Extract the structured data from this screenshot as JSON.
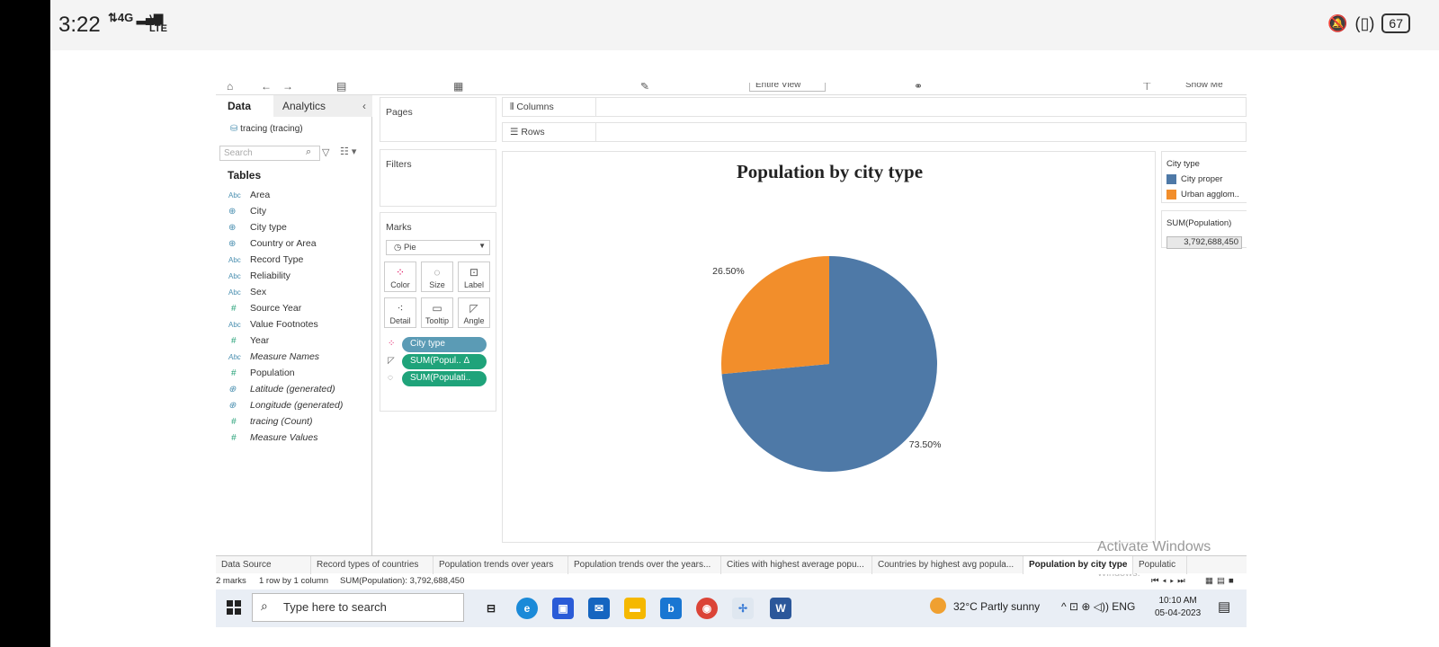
{
  "status_bar": {
    "time": "3:22",
    "signal": "4G",
    "network": "Vo LTE",
    "battery": "67"
  },
  "tableau": {
    "toolbar": {
      "view_select": "Entire View",
      "show_me": "Show Me"
    },
    "data_pane": {
      "tab_data": "Data",
      "tab_analytics": "Analytics",
      "datasource": "tracing (tracing)",
      "search_placeholder": "Search",
      "tables_heading": "Tables",
      "fields": [
        {
          "type": "Abc",
          "kind": "str",
          "name": "Area",
          "italic": false
        },
        {
          "type": "⊕",
          "kind": "geo",
          "name": "City",
          "italic": false
        },
        {
          "type": "⊕",
          "kind": "geo",
          "name": "City type",
          "italic": false
        },
        {
          "type": "⊕",
          "kind": "geo",
          "name": "Country or Area",
          "italic": false
        },
        {
          "type": "Abc",
          "kind": "str",
          "name": "Record Type",
          "italic": false
        },
        {
          "type": "Abc",
          "kind": "str",
          "name": "Reliability",
          "italic": false
        },
        {
          "type": "Abc",
          "kind": "str",
          "name": "Sex",
          "italic": false
        },
        {
          "type": "#",
          "kind": "num",
          "name": "Source Year",
          "italic": false
        },
        {
          "type": "Abc",
          "kind": "str",
          "name": "Value Footnotes",
          "italic": false
        },
        {
          "type": "#",
          "kind": "num",
          "name": "Year",
          "italic": false
        },
        {
          "type": "Abc",
          "kind": "str",
          "name": "Measure Names",
          "italic": true
        },
        {
          "type": "#",
          "kind": "num",
          "name": "Population",
          "italic": false
        },
        {
          "type": "⊕",
          "kind": "geo",
          "name": "Latitude (generated)",
          "italic": true
        },
        {
          "type": "⊕",
          "kind": "geo",
          "name": "Longitude (generated)",
          "italic": true
        },
        {
          "type": "#",
          "kind": "num",
          "name": "tracing (Count)",
          "italic": true
        },
        {
          "type": "#",
          "kind": "num",
          "name": "Measure Values",
          "italic": true
        }
      ]
    },
    "pages_title": "Pages",
    "filters_title": "Filters",
    "marks": {
      "title": "Marks",
      "mark_type": "Pie",
      "buttons": [
        "Color",
        "Size",
        "Label",
        "Detail",
        "Tooltip",
        "Angle"
      ],
      "pills": [
        {
          "label": "City type",
          "color": "#5b9bb5"
        },
        {
          "label": "SUM(Popul..  Δ",
          "color": "#1fa37a"
        },
        {
          "label": "SUM(Populati..",
          "color": "#1fa37a"
        }
      ]
    },
    "shelves": {
      "columns": "Columns",
      "rows": "Rows"
    },
    "legend": {
      "title": "City type",
      "items": [
        {
          "label": "City proper",
          "color": "#4e79a7"
        },
        {
          "label": "Urban agglom..",
          "color": "#f28e2b"
        }
      ]
    },
    "sum_card": {
      "title": "SUM(Population)",
      "value": "3,792,688,450"
    },
    "watermark": {
      "line1": "Activate Windows",
      "line2": "Go to Settings to activate Windows."
    },
    "sheet_tabs": [
      {
        "label": "Data Source",
        "active": false
      },
      {
        "label": "Record types of countries",
        "active": false
      },
      {
        "label": "Population trends over years",
        "active": false
      },
      {
        "label": "Population trends over the years...",
        "active": false
      },
      {
        "label": "Cities with highest average popu...",
        "active": false
      },
      {
        "label": "Countries by highest avg popula...",
        "active": false
      },
      {
        "label": "Population by city type",
        "active": true
      },
      {
        "label": "Populatic",
        "active": false
      }
    ],
    "status_line": {
      "marks": "2 marks",
      "layout": "1 row by 1 column",
      "sum": "SUM(Population): 3,792,688,450"
    }
  },
  "chart_data": {
    "type": "pie",
    "title": "Population by city type",
    "categories": [
      "City proper",
      "Urban agglomeration"
    ],
    "values": [
      73.5,
      26.5
    ],
    "labels": [
      "73.50%",
      "26.50%"
    ],
    "colors": [
      "#4e79a7",
      "#f28e2b"
    ],
    "legend": "right"
  },
  "taskbar": {
    "search_placeholder": "Type here to search",
    "weather": "32°C  Partly sunny",
    "language": "ENG",
    "time": "10:10 AM",
    "date": "05-04-2023"
  }
}
